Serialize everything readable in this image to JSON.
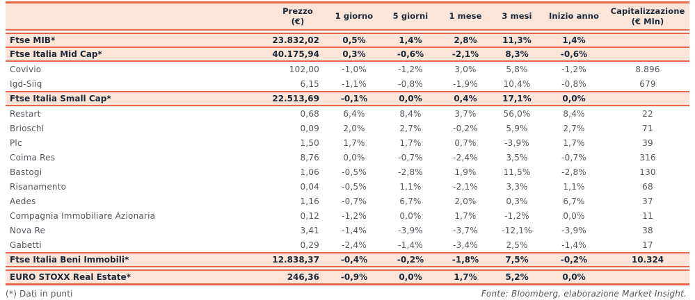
{
  "colors": {
    "accent": "#E8654A",
    "row_bg": "#FBE5D8",
    "heading_text": "#1B2838",
    "body_text": "#54575D"
  },
  "table": {
    "columns": [
      {
        "key": "name",
        "label": "",
        "sublabel": "",
        "align": "name"
      },
      {
        "key": "prezzo",
        "label": "Prezzo",
        "sublabel": "(€)",
        "align": "num-right"
      },
      {
        "key": "d1",
        "label": "1 giorno",
        "sublabel": "",
        "align": "num-center"
      },
      {
        "key": "d5",
        "label": "5 giorni",
        "sublabel": "",
        "align": "num-center"
      },
      {
        "key": "m1",
        "label": "1 mese",
        "sublabel": "",
        "align": "num-center"
      },
      {
        "key": "m3",
        "label": "3 mesi",
        "sublabel": "",
        "align": "num-center"
      },
      {
        "key": "ytd",
        "label": "Inizio anno",
        "sublabel": "",
        "align": "num-center"
      },
      {
        "key": "cap",
        "label": "Capitalizzazione",
        "sublabel": "(€ Mln)",
        "align": "num-center"
      }
    ],
    "rows": [
      {
        "type": "index",
        "sep": "double",
        "name": "Ftse MIB*",
        "prezzo": "23.832,02",
        "d1": "0,5%",
        "d5": "1,4%",
        "m1": "2,8%",
        "m3": "11,3%",
        "ytd": "1,4%",
        "cap": ""
      },
      {
        "type": "index",
        "sep": "single",
        "name": "Ftse Italia Mid Cap*",
        "prezzo": "40.175,94",
        "d1": "0,3%",
        "d5": "-0,6%",
        "m1": "-2,1%",
        "m3": "8,3%",
        "ytd": "-0,6%",
        "cap": ""
      },
      {
        "type": "stock",
        "sep": "single",
        "name": "Covivio",
        "prezzo": "102,00",
        "d1": "-1,0%",
        "d5": "-1,2%",
        "m1": "3,0%",
        "m3": "5,8%",
        "ytd": "-1,2%",
        "cap": "8.896"
      },
      {
        "type": "stock",
        "sep": "none",
        "name": "Igd-Siiq",
        "prezzo": "6,15",
        "d1": "-1,1%",
        "d5": "-0,8%",
        "m1": "-1,9%",
        "m3": "10,4%",
        "ytd": "-0,8%",
        "cap": "679"
      },
      {
        "type": "index",
        "sep": "single",
        "name": "Ftse Italia Small Cap*",
        "prezzo": "22.513,69",
        "d1": "-0,1%",
        "d5": "0,0%",
        "m1": "0,4%",
        "m3": "17,1%",
        "ytd": "0,0%",
        "cap": ""
      },
      {
        "type": "stock",
        "sep": "single",
        "name": "Restart",
        "prezzo": "0,68",
        "d1": "6,4%",
        "d5": "8,4%",
        "m1": "3,7%",
        "m3": "56,0%",
        "ytd": "8,4%",
        "cap": "22"
      },
      {
        "type": "stock",
        "sep": "none",
        "name": "Brioschi",
        "prezzo": "0,09",
        "d1": "2,0%",
        "d5": "2,7%",
        "m1": "-0,2%",
        "m3": "5,9%",
        "ytd": "2,7%",
        "cap": "71"
      },
      {
        "type": "stock",
        "sep": "none",
        "name": "Plc",
        "prezzo": "1,50",
        "d1": "1,7%",
        "d5": "1,7%",
        "m1": "0,7%",
        "m3": "-3,9%",
        "ytd": "1,7%",
        "cap": "39"
      },
      {
        "type": "stock",
        "sep": "none",
        "name": "Coima Res",
        "prezzo": "8,76",
        "d1": "0,0%",
        "d5": "-0,7%",
        "m1": "-2,4%",
        "m3": "3,5%",
        "ytd": "-0,7%",
        "cap": "316"
      },
      {
        "type": "stock",
        "sep": "none",
        "name": "Bastogi",
        "prezzo": "1,06",
        "d1": "-0,5%",
        "d5": "-2,8%",
        "m1": "1,9%",
        "m3": "11,5%",
        "ytd": "-2,8%",
        "cap": "130"
      },
      {
        "type": "stock",
        "sep": "none",
        "name": "Risanamento",
        "prezzo": "0,04",
        "d1": "-0,5%",
        "d5": "1,1%",
        "m1": "-2,1%",
        "m3": "3,3%",
        "ytd": "1,1%",
        "cap": "68"
      },
      {
        "type": "stock",
        "sep": "none",
        "name": "Aedes",
        "prezzo": "1,16",
        "d1": "-0,7%",
        "d5": "6,7%",
        "m1": "2,0%",
        "m3": "0,3%",
        "ytd": "6,7%",
        "cap": "37"
      },
      {
        "type": "stock",
        "sep": "none",
        "name": "Compagnia Immobiliare Azionaria",
        "prezzo": "0,12",
        "d1": "-1,2%",
        "d5": "0,0%",
        "m1": "1,7%",
        "m3": "-1,2%",
        "ytd": "0,0%",
        "cap": "11"
      },
      {
        "type": "stock",
        "sep": "none",
        "name": "Nova Re",
        "prezzo": "3,41",
        "d1": "-1,4%",
        "d5": "-3,9%",
        "m1": "-3,7%",
        "m3": "-12,1%",
        "ytd": "-3,9%",
        "cap": "38"
      },
      {
        "type": "stock",
        "sep": "none",
        "name": "Gabetti",
        "prezzo": "0,29",
        "d1": "-2,4%",
        "d5": "-1,4%",
        "m1": "-3,4%",
        "m3": "2,5%",
        "ytd": "-1,4%",
        "cap": "17"
      },
      {
        "type": "index",
        "sep": "single",
        "name": "Ftse Italia Beni Immobili*",
        "prezzo": "12.838,37",
        "d1": "-0,4%",
        "d5": "-0,2%",
        "m1": "-1,8%",
        "m3": "7,5%",
        "ytd": "-0,2%",
        "cap": "10.324"
      },
      {
        "type": "index",
        "sep": "double",
        "name": "EURO STOXX Real Estate*",
        "prezzo": "246,36",
        "d1": "-0,9%",
        "d5": "0,0%",
        "m1": "1,7%",
        "m3": "5,2%",
        "ytd": "0,0%",
        "cap": ""
      }
    ]
  },
  "footer": {
    "note": "(*) Dati in punti",
    "source": "Fonte: Bloomberg, elaborazione Market Insight."
  }
}
